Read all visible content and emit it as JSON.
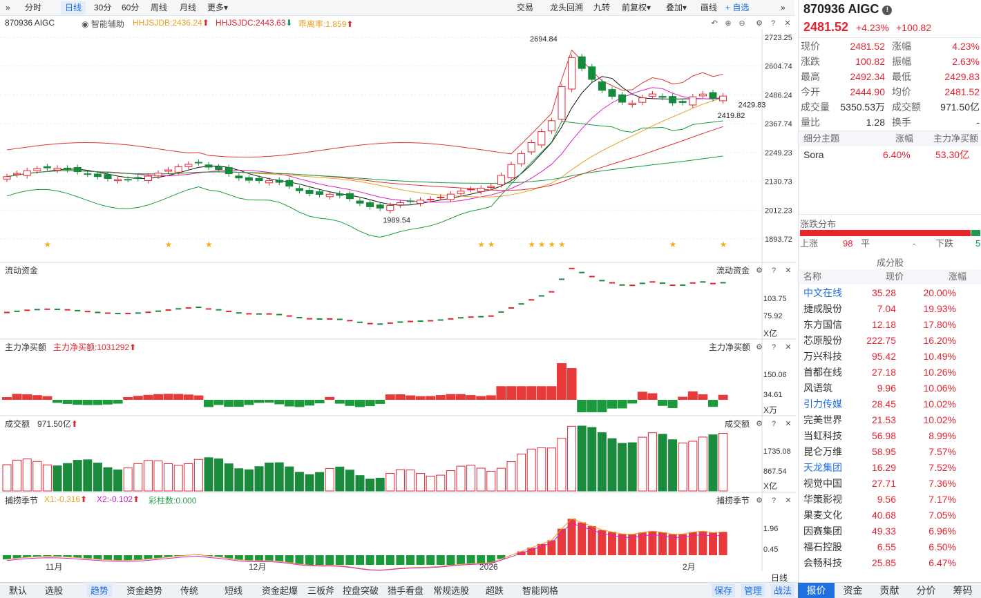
{
  "toolbar": {
    "expand_glyph": "»",
    "periods": [
      "分时",
      "日线",
      "30分",
      "60分",
      "周线",
      "月线",
      "更多▾"
    ],
    "active_period": "日线",
    "right": [
      "交易",
      "龙头回溯",
      "九转",
      "前复权▾",
      "叠加▾",
      "画线"
    ],
    "fav_label": "+ 自选",
    "collapse_glyph": "»"
  },
  "info": {
    "code_name": "870936 AIGC",
    "assist": "智能辅助",
    "ind1": "HHJSJDB:2436.24",
    "ind2": "HHJSJDC:2443.63",
    "ind3": "乖离率:1.859"
  },
  "chart_data": [
    {
      "type": "candlestick",
      "title": "870936 AIGC",
      "y_ticks": [
        "2723.25",
        "2604.74",
        "2486.24",
        "2367.74",
        "2249.23",
        "2130.73",
        "2012.23",
        "1893.72"
      ],
      "ylim": [
        1893.72,
        2723.25
      ],
      "annotations": [
        "2694.84",
        "1989.54",
        "2419.82",
        "2429.83"
      ],
      "x_ticks": [
        "11月",
        "12月",
        "2026",
        "2月"
      ],
      "last_close": 2481.52
    },
    {
      "type": "bar",
      "title": "流动资金",
      "y_ticks": [
        "103.75",
        "75.92"
      ],
      "unit": "X亿"
    },
    {
      "type": "bar",
      "title": "主力净买额",
      "value_label": "主力净买额:1031292",
      "y_ticks": [
        "150.06",
        "34.61"
      ],
      "unit": "X万"
    },
    {
      "type": "bar",
      "title": "成交额",
      "value_label": "971.50亿",
      "y_ticks": [
        "1735.08",
        "867.54"
      ],
      "unit": "X亿"
    },
    {
      "type": "bar",
      "title": "捕捞季节",
      "legend": [
        "X1:-0.316",
        "X2:-0.102",
        "彩柱数:0.000"
      ],
      "y_ticks": [
        "1.96",
        "0.45"
      ]
    }
  ],
  "panel_titles": {
    "p2": "流动资金",
    "p3": "主力净买额",
    "p4": "成交额",
    "p5": "捕捞季节"
  },
  "right_panel": {
    "title": "870936 AIGC",
    "price": "2481.52",
    "change_pct": "+4.23%",
    "change_amt": "+100.82",
    "stats": [
      [
        "现价",
        "2481.52",
        "涨幅",
        "4.23%"
      ],
      [
        "涨跌",
        "100.82",
        "振幅",
        "2.63%"
      ],
      [
        "最高",
        "2492.34",
        "最低",
        "2429.83"
      ],
      [
        "今开",
        "2444.90",
        "均价",
        "2481.52"
      ],
      [
        "成交量",
        "5350.53万",
        "成交额",
        "971.50亿"
      ],
      [
        "量比",
        "1.28",
        "换手",
        "-"
      ]
    ],
    "theme_header": [
      "细分主题",
      "涨幅",
      "主力净买额"
    ],
    "theme_row": [
      "Sora",
      "6.40%",
      "53.30亿"
    ],
    "dist_title": "涨跌分布",
    "up_label": "上涨",
    "up_count": "98",
    "flat_label": "平",
    "flat_count": "-",
    "down_label": "下跌",
    "down_count": "5",
    "components_title": "成分股",
    "comp_header": [
      "名称",
      "现价",
      "涨幅"
    ],
    "components": [
      {
        "name": "中文在线",
        "price": "35.28",
        "pct": "20.00%",
        "hl": true
      },
      {
        "name": "捷成股份",
        "price": "7.04",
        "pct": "19.93%",
        "hl": false
      },
      {
        "name": "东方国信",
        "price": "12.18",
        "pct": "17.80%",
        "hl": false
      },
      {
        "name": "芯原股份",
        "price": "222.75",
        "pct": "16.20%",
        "hl": false
      },
      {
        "name": "万兴科技",
        "price": "95.42",
        "pct": "10.49%",
        "hl": false
      },
      {
        "name": "首都在线",
        "price": "27.18",
        "pct": "10.26%",
        "hl": false
      },
      {
        "name": "风语筑",
        "price": "9.96",
        "pct": "10.06%",
        "hl": false
      },
      {
        "name": "引力传媒",
        "price": "28.45",
        "pct": "10.02%",
        "hl": true
      },
      {
        "name": "完美世界",
        "price": "21.53",
        "pct": "10.02%",
        "hl": false
      },
      {
        "name": "当虹科技",
        "price": "56.98",
        "pct": "8.99%",
        "hl": false
      },
      {
        "name": "昆仑万维",
        "price": "58.95",
        "pct": "7.57%",
        "hl": false
      },
      {
        "name": "天龙集团",
        "price": "16.29",
        "pct": "7.52%",
        "hl": true
      },
      {
        "name": "视觉中国",
        "price": "27.71",
        "pct": "7.36%",
        "hl": false
      },
      {
        "name": "华策影视",
        "price": "9.56",
        "pct": "7.17%",
        "hl": false
      },
      {
        "name": "果麦文化",
        "price": "40.68",
        "pct": "7.05%",
        "hl": false
      },
      {
        "name": "因赛集团",
        "price": "49.33",
        "pct": "6.96%",
        "hl": false
      },
      {
        "name": "福石控股",
        "price": "6.55",
        "pct": "6.50%",
        "hl": false
      },
      {
        "name": "会畅科技",
        "price": "25.85",
        "pct": "6.47%",
        "hl": false
      }
    ]
  },
  "bottom_tabs": [
    "默认",
    "选股",
    "趋势",
    "资金趋势",
    "传统",
    "短线",
    "资金起爆",
    "三板斧",
    "控盘突破",
    "猎手看盘",
    "常规选股",
    "超跌",
    "智能网格"
  ],
  "active_bottom_tab": "趋势",
  "bottom_right": [
    "保存",
    "管理",
    "战法"
  ],
  "day_line_label": "日线",
  "right_tabs": [
    "报价",
    "资金",
    "贡献",
    "分价",
    "筹码"
  ],
  "active_right_tab": "报价",
  "colors": {
    "up": "#e5232f",
    "down": "#138a3c",
    "accent": "#1f6fe0"
  }
}
